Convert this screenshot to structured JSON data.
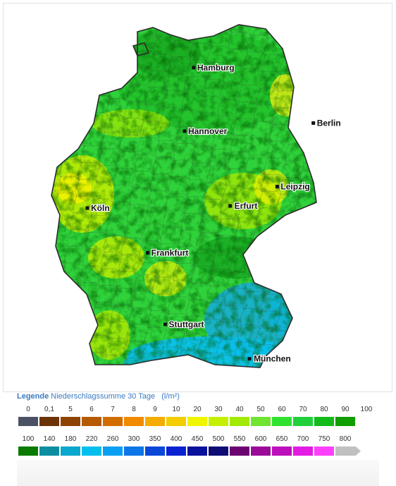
{
  "map": {
    "cities": [
      {
        "name": "Hamburg",
        "lon": 9.99,
        "lat": 53.55
      },
      {
        "name": "Berlin",
        "lon": 13.4,
        "lat": 52.52
      },
      {
        "name": "Hannover",
        "lon": 9.73,
        "lat": 52.37
      },
      {
        "name": "Leipzig",
        "lon": 12.37,
        "lat": 51.34
      },
      {
        "name": "Köln",
        "lon": 6.96,
        "lat": 50.94
      },
      {
        "name": "Erfurt",
        "lon": 11.03,
        "lat": 50.98
      },
      {
        "name": "Frankfurt",
        "lon": 8.68,
        "lat": 50.11
      },
      {
        "name": "Stuttgart",
        "lon": 9.18,
        "lat": 48.78
      },
      {
        "name": "München",
        "lon": 11.58,
        "lat": 48.14
      }
    ]
  },
  "legend": {
    "title": "Legende",
    "subtitle": "Niederschlagssumme 30 Tage",
    "unit": "(l/m²)",
    "scale1": {
      "ticks": [
        "0",
        "0,1",
        "5",
        "6",
        "7",
        "8",
        "9",
        "10",
        "20",
        "30",
        "40",
        "50",
        "60",
        "70",
        "80",
        "90",
        "100"
      ],
      "colors": [
        "#4a5263",
        "#6b3306",
        "#8e4200",
        "#b55a00",
        "#d26c00",
        "#f28a00",
        "#f5ac00",
        "#f3cd00",
        "#eff600",
        "#c4f000",
        "#a1ea00",
        "#6fe52f",
        "#2fe22f",
        "#20d03a",
        "#12bb18",
        "#119c00"
      ]
    },
    "scale2": {
      "ticks": [
        "100",
        "140",
        "180",
        "220",
        "260",
        "300",
        "350",
        "400",
        "450",
        "500",
        "550",
        "600",
        "650",
        "700",
        "750",
        "800"
      ],
      "colors": [
        "#0a7b00",
        "#0b8ea0",
        "#0aa8cc",
        "#02beee",
        "#08a0f3",
        "#0e76e6",
        "#0a47d9",
        "#0b22d3",
        "#0a119d",
        "#0e0c75",
        "#6c0472",
        "#9a0b9a",
        "#bd0fbd",
        "#e31ce3",
        "#fe40fe",
        "#c0c0c0"
      ]
    }
  }
}
